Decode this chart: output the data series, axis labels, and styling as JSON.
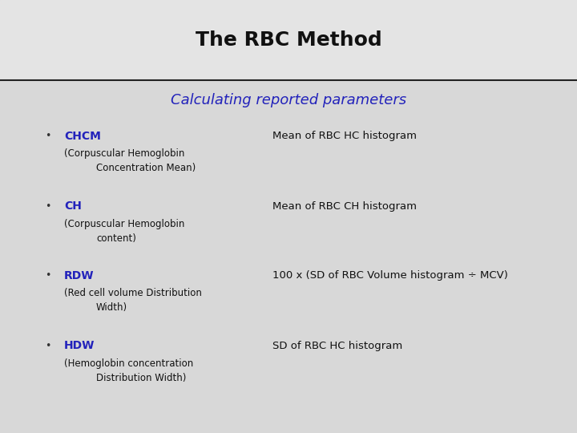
{
  "title": "The RBC Method",
  "subtitle": "Calculating reported parameters",
  "title_color": "#111111",
  "subtitle_color": "#2222bb",
  "bg_top_color": "#e8e8e8",
  "bg_bottom_color": "#d8d8d8",
  "separator_color": "#222222",
  "bullet_color": "#333333",
  "bullet_label_color": "#2222bb",
  "bullet_text_color": "#111111",
  "bullets": [
    {
      "label": "CHCM",
      "desc_line1": "(Corpuscular Hemoglobin",
      "desc_line2": "        Concentration Mean)",
      "definition": "Mean of RBC HC histogram"
    },
    {
      "label": "CH",
      "desc_line1": "(Corpuscular Hemoglobin",
      "desc_line2": "              content)",
      "definition": "Mean of RBC CH histogram"
    },
    {
      "label": "RDW",
      "desc_line1": "(Red cell volume Distribution",
      "desc_line2": "             Width)",
      "definition": "100 x (SD of RBC Volume histogram ÷ MCV)"
    },
    {
      "label": "HDW",
      "desc_line1": "(Hemoglobin concentration",
      "desc_line2": "        Distribution Width)",
      "definition": "SD of RBC HC histogram"
    }
  ],
  "figsize": [
    7.2,
    5.4
  ],
  "dpi": 100
}
